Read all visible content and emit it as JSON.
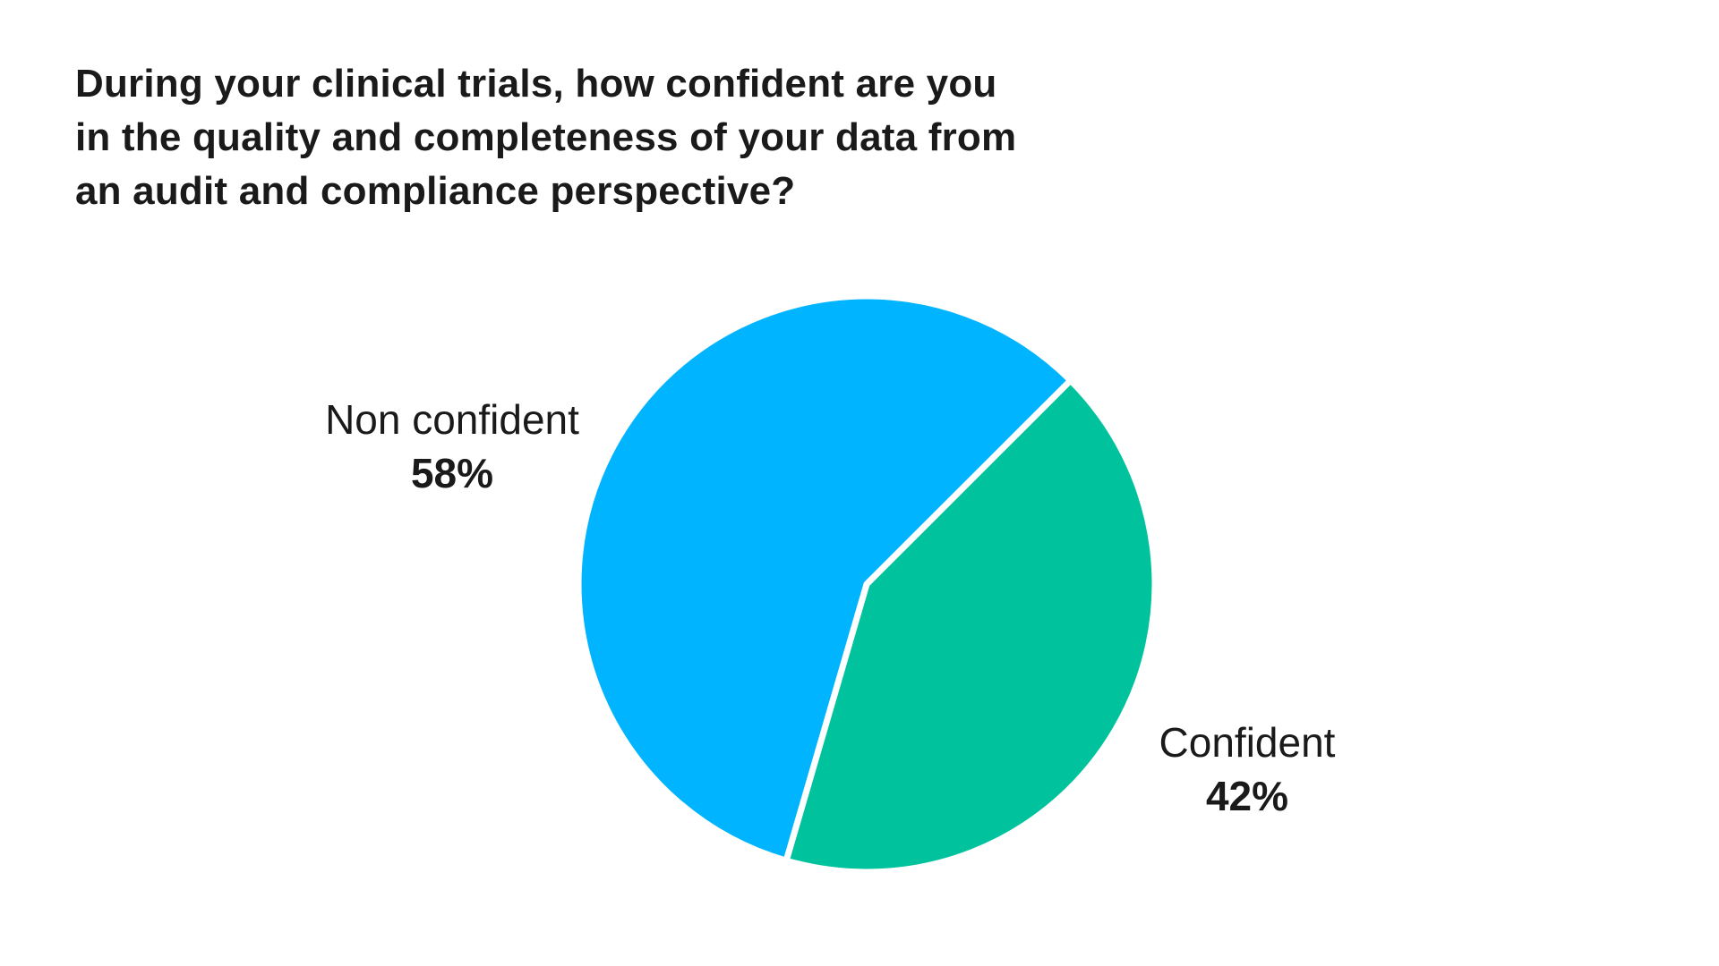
{
  "chart_data": {
    "type": "pie",
    "title_lines": [
      "During your clinical trials, how confident are you",
      "in the quality and completeness of your data from",
      "an audit and compliance perspective?"
    ],
    "start_angle_deg": 45,
    "direction": "clockwise",
    "slices": [
      {
        "label": "Confident",
        "value": 42,
        "value_label": "42%",
        "color": "#00c39d"
      },
      {
        "label": "Non confident",
        "value": 58,
        "value_label": "58%",
        "color": "#00b4ff"
      }
    ],
    "legend": "none",
    "separator_color": "#ffffff"
  }
}
